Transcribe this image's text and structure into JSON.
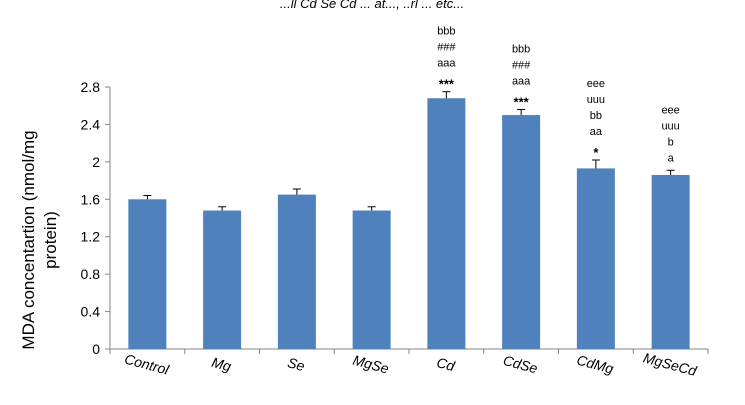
{
  "chart_data": {
    "type": "bar",
    "title": "...ll Cd Se Cd ... at..., ..rl ... etc...",
    "categories": [
      "Control",
      "Mg",
      "Se",
      "MgSe",
      "Cd",
      "CdSe",
      "CdMg",
      "MgSeCd"
    ],
    "values": [
      1.6,
      1.48,
      1.65,
      1.48,
      2.68,
      2.5,
      1.93,
      1.86
    ],
    "errors": [
      0.04,
      0.04,
      0.06,
      0.04,
      0.07,
      0.06,
      0.09,
      0.05
    ],
    "annotations": [
      [],
      [],
      [],
      [],
      [
        "bbb",
        "###",
        "aaa",
        "***"
      ],
      [
        "bbb",
        "###",
        "aaa",
        "***"
      ],
      [
        "eee",
        "uuu",
        "bb",
        "aa",
        "*"
      ],
      [
        "eee",
        "uuu",
        "b",
        "a"
      ]
    ],
    "xlabel": "",
    "ylabel": "MDA concentartion (nmol/mg protein)",
    "ylabel_lines": [
      "MDA concentartion (nmol/mg",
      "protein)"
    ],
    "ylim": [
      0,
      2.8
    ],
    "yticks": [
      0,
      0.4,
      0.8,
      1.2,
      1.6,
      2,
      2.4,
      2.8
    ],
    "ytick_labels": [
      "0",
      "0.4",
      "0.8",
      "1.2",
      "1.6",
      "2",
      "2.4",
      "2.8"
    ],
    "grid": false,
    "legend": "none",
    "bar_color": "#4f81bd"
  }
}
